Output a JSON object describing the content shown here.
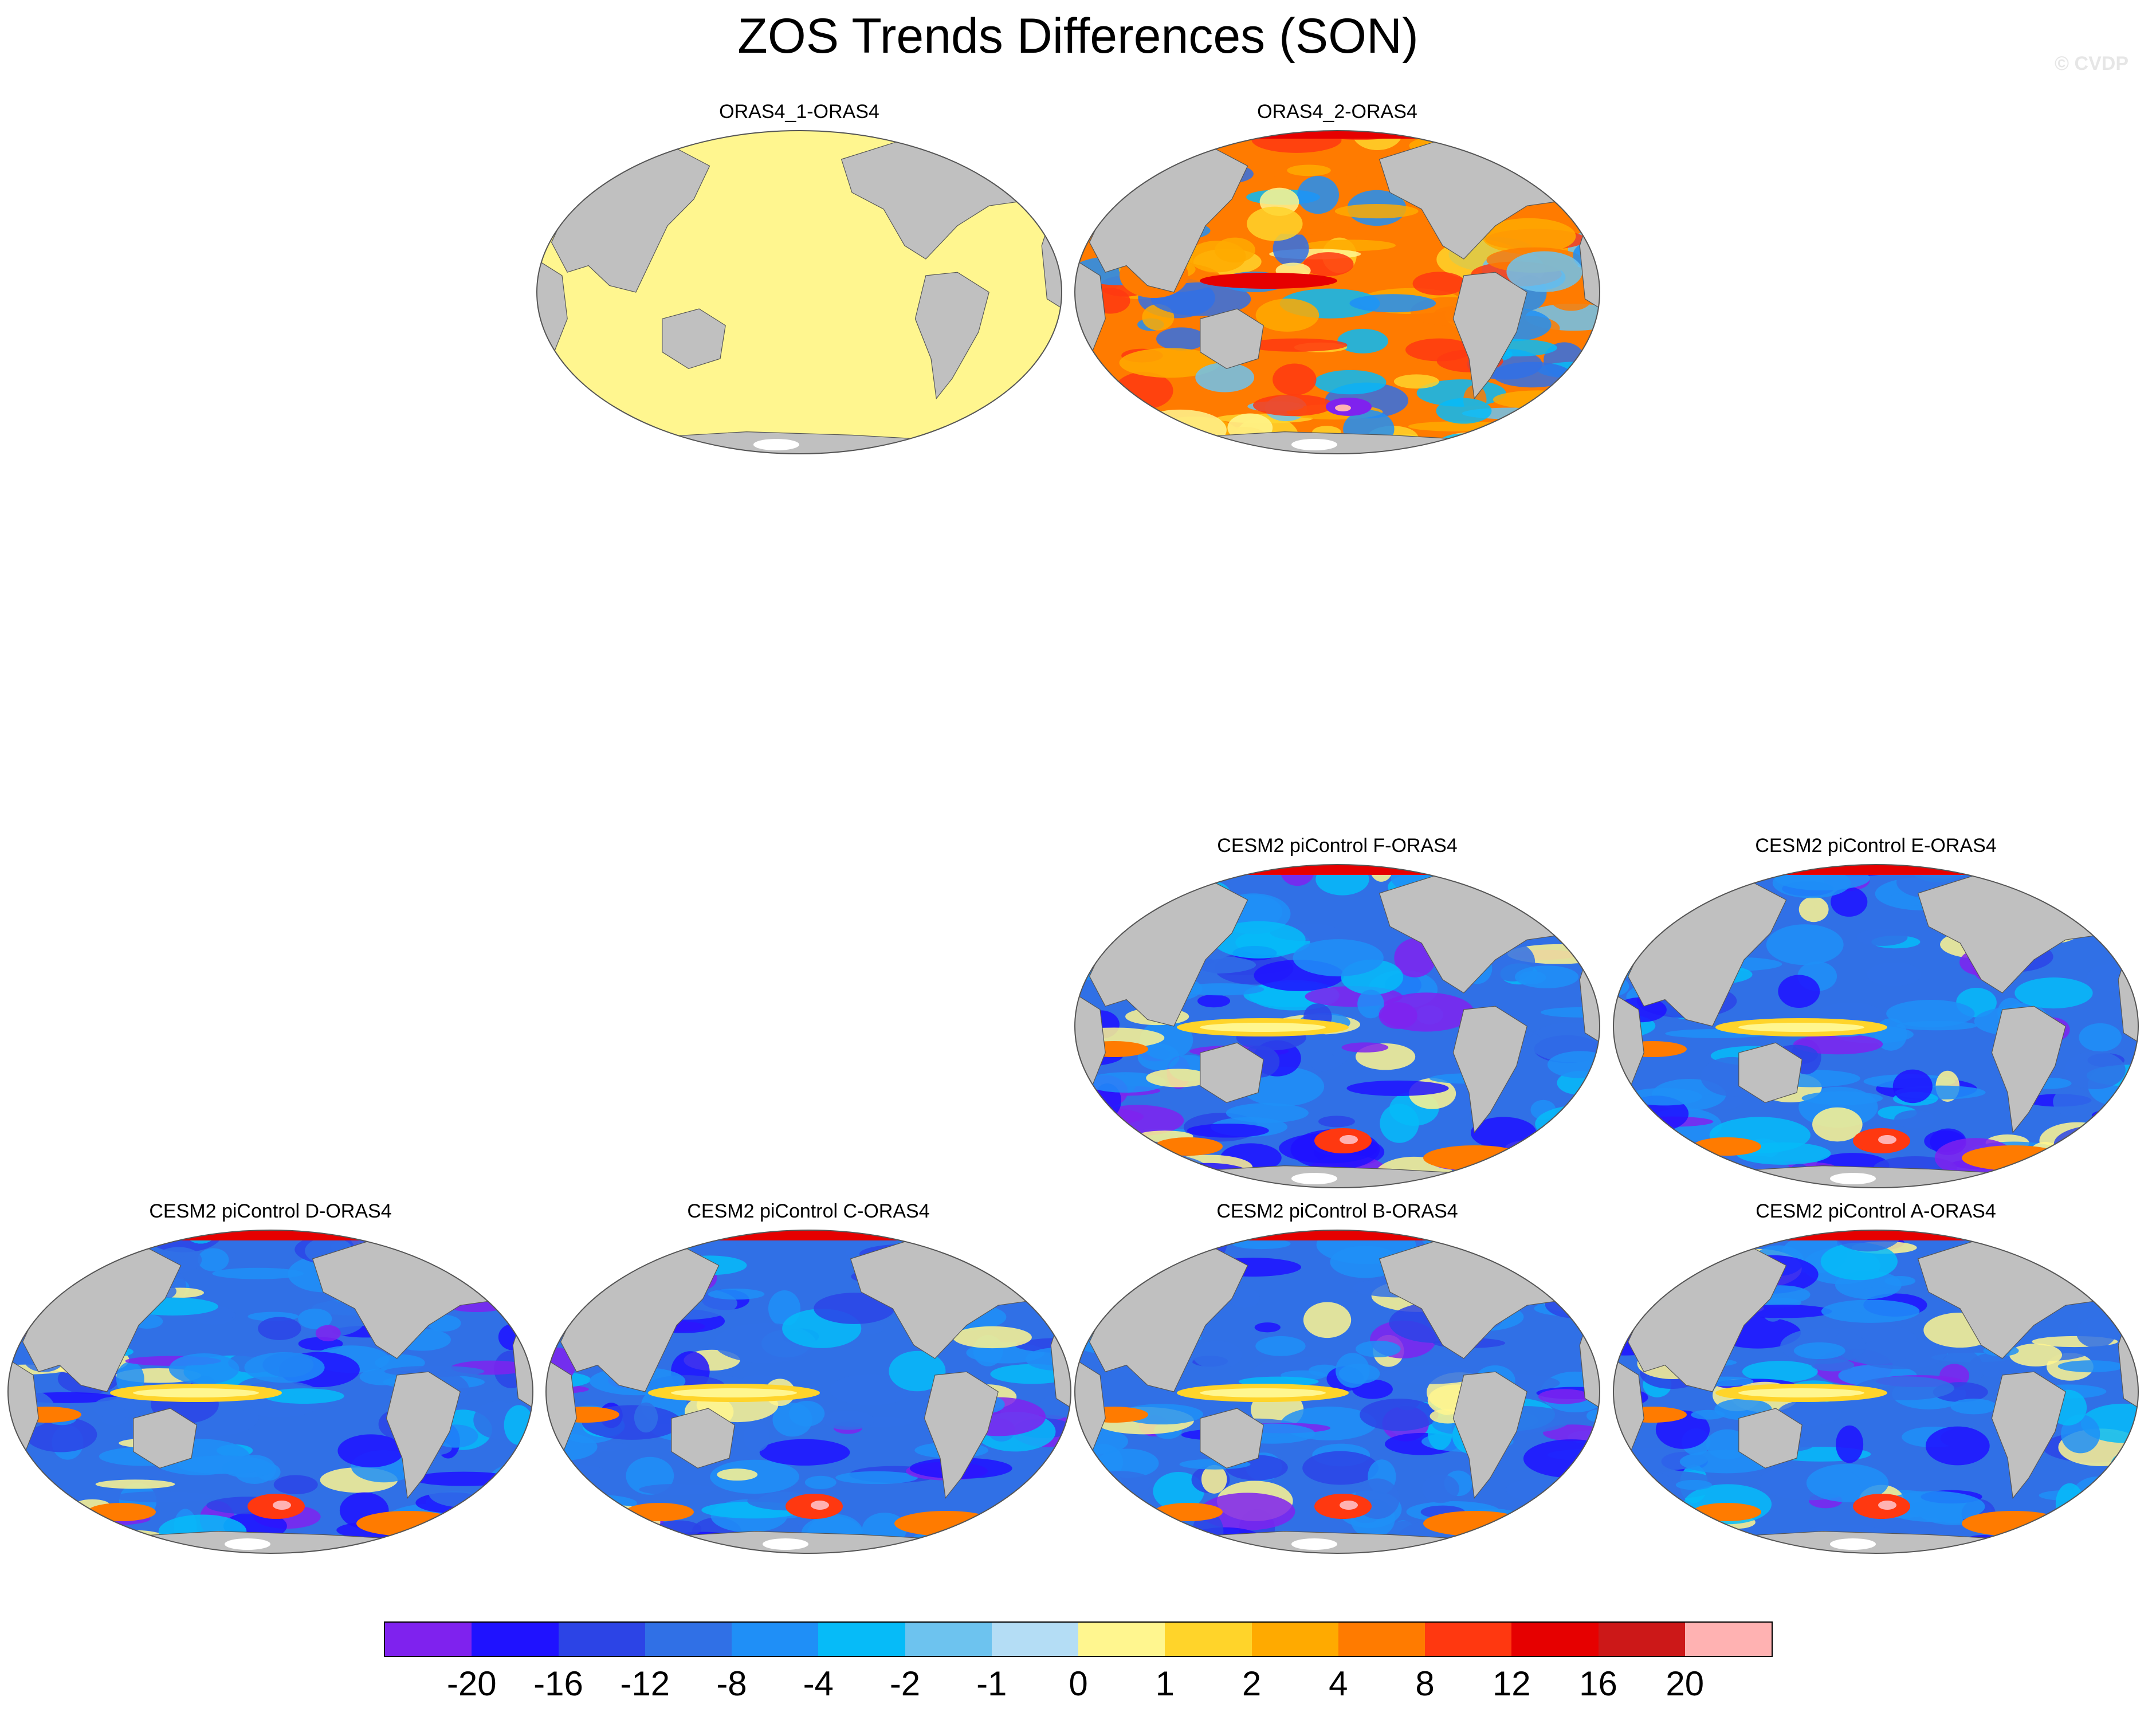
{
  "title": "ZOS Trends Differences (SON)",
  "watermark": "© CVDP",
  "panels": [
    {
      "title": "ORAS4_1-ORAS4",
      "fill": "uniform"
    },
    {
      "title": "ORAS4_2-ORAS4",
      "fill": "mixed"
    },
    {
      "title": "CESM2 piControl F-ORAS4",
      "fill": "model"
    },
    {
      "title": "CESM2 piControl E-ORAS4",
      "fill": "model"
    },
    {
      "title": "CESM2 piControl D-ORAS4",
      "fill": "model"
    },
    {
      "title": "CESM2 piControl C-ORAS4",
      "fill": "model"
    },
    {
      "title": "CESM2 piControl B-ORAS4",
      "fill": "model"
    },
    {
      "title": "CESM2 piControl A-ORAS4",
      "fill": "model"
    }
  ],
  "colorbar": {
    "colors": [
      "#7f22ee",
      "#1f12ff",
      "#2c44e6",
      "#3070e6",
      "#1f8ff7",
      "#06bbf8",
      "#6dc3ef",
      "#b4ddf5",
      "#fff68f",
      "#ffd42a",
      "#ffaa00",
      "#ff7b00",
      "#ff3810",
      "#e60000",
      "#cc1818",
      "#ffb2b2"
    ],
    "labels": [
      "-20",
      "-16",
      "-12",
      "-8",
      "-4",
      "-2",
      "-1",
      "0",
      "1",
      "2",
      "4",
      "8",
      "12",
      "16",
      "20"
    ]
  },
  "colors": {
    "land": "#c0c0c0",
    "ocean_uniform": "#fff68f",
    "model_ocean": "#3070e6"
  }
}
